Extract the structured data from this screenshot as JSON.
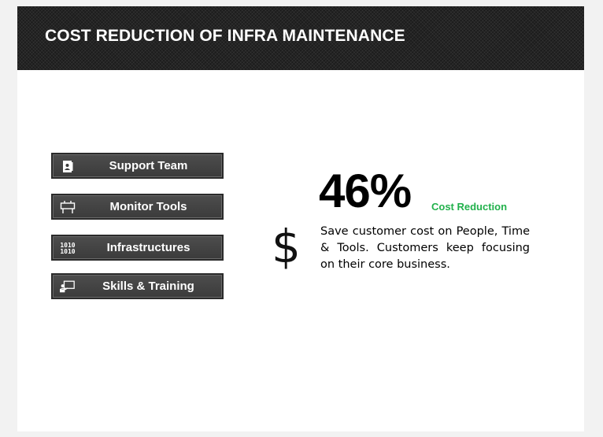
{
  "header": {
    "title": "COST REDUCTION OF INFRA MAINTENANCE"
  },
  "menu": {
    "items": [
      {
        "label": "Support Team",
        "icon": "contact-card-icon"
      },
      {
        "label": "Monitor Tools",
        "icon": "monitor-board-icon"
      },
      {
        "label": "Infrastructures",
        "icon": "binary-code-icon"
      },
      {
        "label": "Skills & Training",
        "icon": "presentation-icon"
      }
    ]
  },
  "stat": {
    "icon": "dollar-icon",
    "symbol": "$",
    "value": "46%",
    "label": "Cost Reduction",
    "description": "Save customer cost on People, Time & Tools. Customers keep focusing on their core business."
  },
  "colors": {
    "header_bg": "#1c1c1c",
    "button_bg": "#444444",
    "accent_green": "#22b14c",
    "page_bg": "#f2f2f2"
  }
}
